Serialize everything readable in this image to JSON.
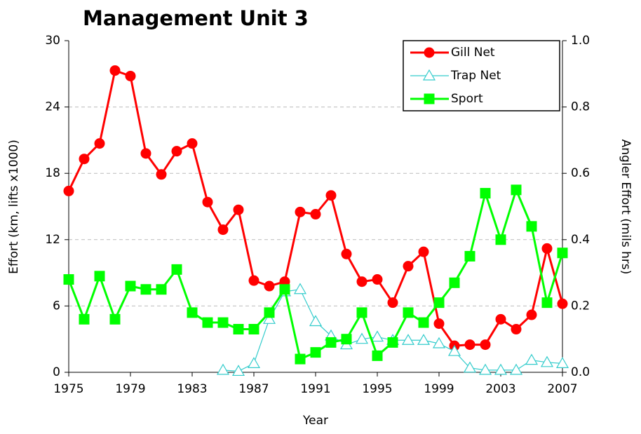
{
  "chart_data": {
    "type": "line",
    "title": "Management Unit 3",
    "xlabel": "Year",
    "ylabel": "Effort (km, lifts x1000)",
    "y2label": "Angler Effort (mils hrs)",
    "x": [
      1975,
      1976,
      1977,
      1978,
      1979,
      1980,
      1981,
      1982,
      1983,
      1984,
      1985,
      1986,
      1987,
      1988,
      1989,
      1990,
      1991,
      1992,
      1993,
      1994,
      1995,
      1996,
      1997,
      1998,
      1999,
      2000,
      2001,
      2002,
      2003,
      2004,
      2005,
      2006,
      2007
    ],
    "xlim": [
      1975,
      2007
    ],
    "xticks": [
      1975,
      1979,
      1983,
      1987,
      1991,
      1995,
      1999,
      2003,
      2007
    ],
    "ylim": [
      0,
      30
    ],
    "yticks": [
      0,
      6,
      12,
      18,
      24,
      30
    ],
    "y2lim": [
      0,
      1
    ],
    "y2ticks": [
      {
        "value": 0,
        "label": "0.0"
      },
      0.2,
      0.4,
      0.6,
      0.8,
      {
        "value": 1,
        "label": "1.0"
      }
    ],
    "grid": true,
    "legend": "upper right",
    "series": [
      {
        "name": "Gill Net",
        "color": "#ff0000",
        "marker": "circle",
        "values": [
          16.4,
          19.3,
          20.7,
          27.3,
          26.8,
          19.8,
          17.9,
          20.0,
          20.7,
          15.4,
          12.9,
          14.7,
          8.3,
          7.8,
          8.2,
          14.5,
          14.3,
          16.0,
          10.7,
          8.2,
          8.4,
          6.3,
          9.6,
          10.9,
          4.4,
          2.4,
          2.5,
          2.5,
          4.8,
          3.9,
          5.2,
          11.2,
          6.2
        ]
      },
      {
        "name": "Trap Net",
        "color": "#33cccc",
        "marker": "triangle",
        "values": [
          null,
          null,
          null,
          null,
          null,
          null,
          null,
          null,
          null,
          null,
          0.2,
          0.1,
          0.8,
          4.8,
          7.3,
          7.5,
          4.6,
          3.3,
          2.5,
          3.0,
          3.2,
          2.9,
          2.9,
          2.9,
          2.6,
          1.9,
          0.4,
          0.2,
          0.2,
          0.2,
          1.1,
          0.9,
          0.8
        ]
      },
      {
        "name": "Sport",
        "color": "#00ff00",
        "marker": "square",
        "axis": "y2",
        "values": [
          0.28,
          0.16,
          0.29,
          0.16,
          0.26,
          0.25,
          0.25,
          0.31,
          0.18,
          0.15,
          0.15,
          0.13,
          0.13,
          0.18,
          0.25,
          0.04,
          0.06,
          0.09,
          0.1,
          0.18,
          0.05,
          0.09,
          0.18,
          0.15,
          0.21,
          0.27,
          0.35,
          0.54,
          0.4,
          0.55,
          0.44,
          0.21,
          0.36
        ]
      }
    ]
  }
}
